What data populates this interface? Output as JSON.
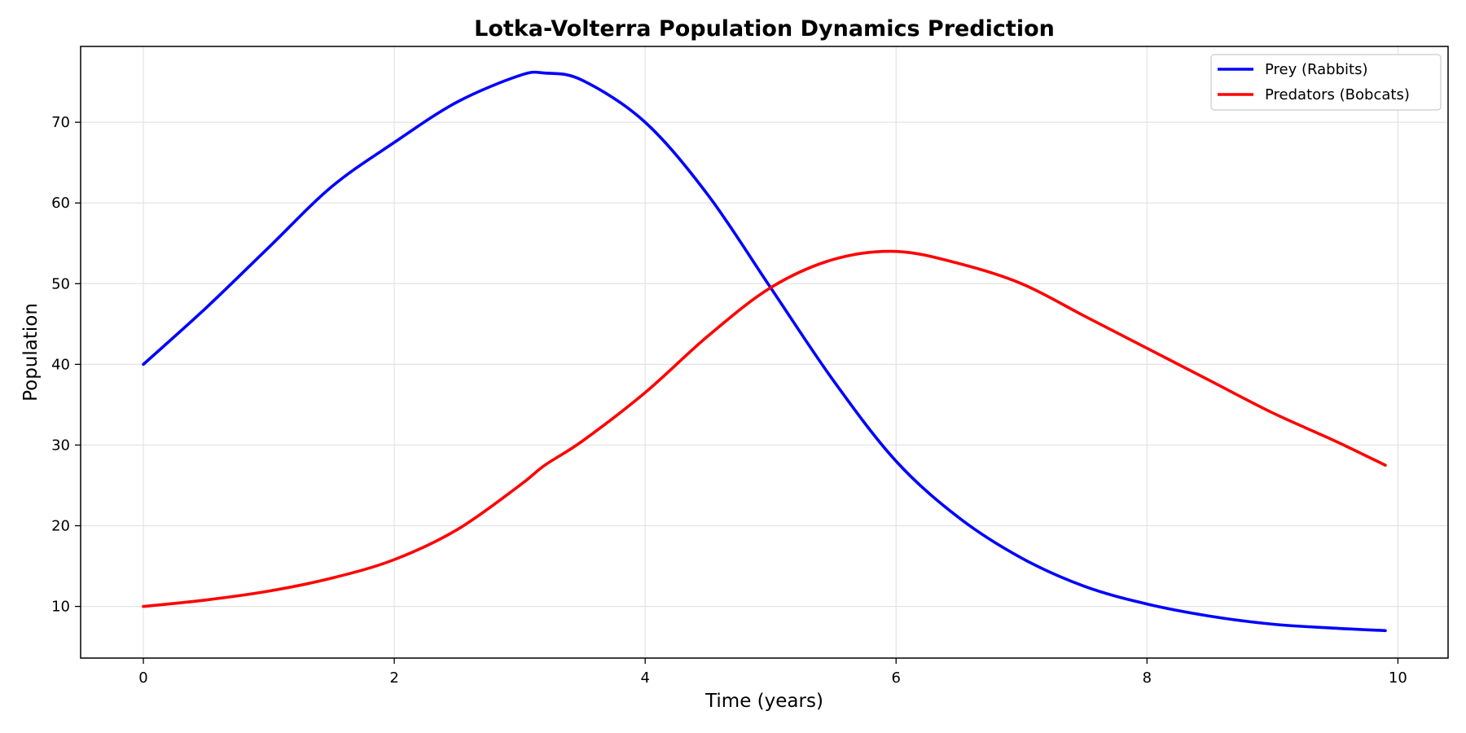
{
  "chart_data": {
    "type": "line",
    "title": "Lotka-Volterra Population Dynamics Prediction",
    "xlabel": "Time (years)",
    "ylabel": "Population",
    "xlim": [
      -0.5,
      10.4
    ],
    "ylim": [
      3.6,
      79.4
    ],
    "xticks": [
      0,
      2,
      4,
      6,
      8,
      10
    ],
    "yticks": [
      10,
      20,
      30,
      40,
      50,
      60,
      70
    ],
    "grid": true,
    "legend_position": "top-right",
    "x": [
      0,
      0.5,
      1,
      1.5,
      2,
      2.5,
      3,
      3.2,
      3.5,
      4,
      4.5,
      5,
      5.5,
      6,
      6.5,
      7,
      7.5,
      8,
      8.5,
      9,
      9.5,
      9.9
    ],
    "series": [
      {
        "name": "Prey (Rabbits)",
        "color": "#0000ff",
        "values": [
          40,
          47,
          54.5,
          62,
          67.5,
          72.5,
          75.8,
          76.1,
          75.2,
          70,
          61,
          49.5,
          38,
          28,
          21,
          16,
          12.5,
          10.3,
          8.8,
          7.8,
          7.3,
          7.0
        ]
      },
      {
        "name": "Predators (Bobcats)",
        "color": "#ff0000",
        "values": [
          10,
          10.8,
          11.9,
          13.5,
          15.8,
          19.5,
          25,
          27.5,
          30.5,
          36.5,
          43.5,
          49.5,
          53,
          54,
          52.5,
          50,
          46,
          42,
          38,
          34,
          30.5,
          27.5
        ]
      }
    ]
  }
}
